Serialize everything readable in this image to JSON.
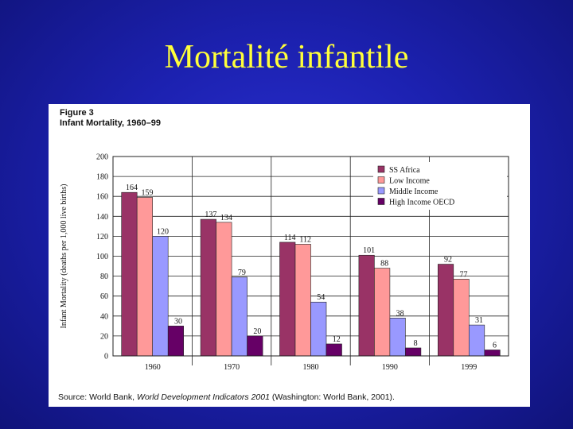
{
  "slide": {
    "title": "Mortalité infantile"
  },
  "figure": {
    "label": "Figure 3",
    "subtitle": "Infant Mortality, 1960–99",
    "source_prefix": "Source: World Bank, ",
    "source_title": "World Development Indicators 2001",
    "source_suffix": " (Washington: World Bank, 2001)."
  },
  "chart_data": {
    "type": "bar",
    "title": "Infant Mortality, 1960–99",
    "xlabel": "",
    "ylabel": "Infant Mortality (deaths per 1,000 live births)",
    "ylim": [
      0,
      200
    ],
    "yticks": [
      0,
      20,
      40,
      60,
      80,
      100,
      120,
      140,
      160,
      180,
      200
    ],
    "grid": true,
    "legend_position": "top-right",
    "categories": [
      "1960",
      "1970",
      "1980",
      "1990",
      "1999"
    ],
    "series": [
      {
        "name": "SS Africa",
        "color": "#993366",
        "values": [
          164,
          137,
          114,
          101,
          92
        ]
      },
      {
        "name": "Low Income",
        "color": "#ff9999",
        "values": [
          159,
          134,
          112,
          88,
          77
        ]
      },
      {
        "name": "Middle Income",
        "color": "#9999ff",
        "values": [
          120,
          79,
          54,
          38,
          31
        ]
      },
      {
        "name": "High Income OECD",
        "color": "#660066",
        "values": [
          30,
          20,
          12,
          8,
          6
        ]
      }
    ]
  }
}
